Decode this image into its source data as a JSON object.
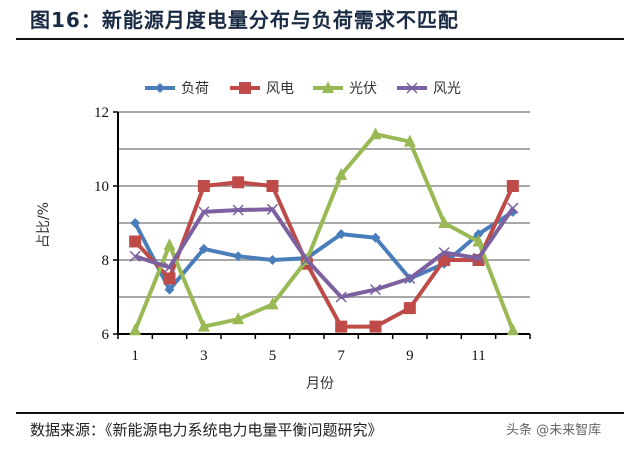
{
  "header": {
    "title": "图16：新能源月度电量分布与负荷需求不匹配"
  },
  "footer": {
    "source": "数据来源：《新能源电力系统电力电量平衡问题研究》",
    "watermark": "头条 @未来智库"
  },
  "chart_data": {
    "type": "line",
    "title": "新能源月度电量分布与负荷需求不匹配",
    "xlabel": "月份",
    "ylabel": "占比/%",
    "x": [
      1,
      2,
      3,
      4,
      5,
      6,
      7,
      8,
      9,
      10,
      11,
      12
    ],
    "xticks": [
      "1",
      "3",
      "5",
      "7",
      "9",
      "11"
    ],
    "yticks": [
      "6",
      "8",
      "10",
      "12"
    ],
    "ylim": [
      6,
      12
    ],
    "grid": "horizontal every 1",
    "legend_position": "top",
    "series": [
      {
        "name": "负荷",
        "color": "#4a7ebb",
        "marker": "diamond",
        "values": [
          9.0,
          7.2,
          8.3,
          8.1,
          8.0,
          8.05,
          8.7,
          8.6,
          7.5,
          7.9,
          8.7,
          9.3
        ]
      },
      {
        "name": "风电",
        "color": "#be4b48",
        "marker": "square",
        "values": [
          8.5,
          7.5,
          10.0,
          10.1,
          10.0,
          7.9,
          6.2,
          6.2,
          6.7,
          8.0,
          8.0,
          10.0
        ]
      },
      {
        "name": "光伏",
        "color": "#98b954",
        "marker": "triangle",
        "values": [
          6.1,
          8.4,
          6.2,
          6.4,
          6.8,
          8.0,
          10.3,
          11.4,
          11.2,
          9.0,
          8.5,
          6.1
        ]
      },
      {
        "name": "风光",
        "color": "#7d60a0",
        "marker": "x",
        "values": [
          8.1,
          7.8,
          9.3,
          9.35,
          9.37,
          8.0,
          7.0,
          7.2,
          7.5,
          8.2,
          8.05,
          9.4
        ]
      }
    ]
  }
}
